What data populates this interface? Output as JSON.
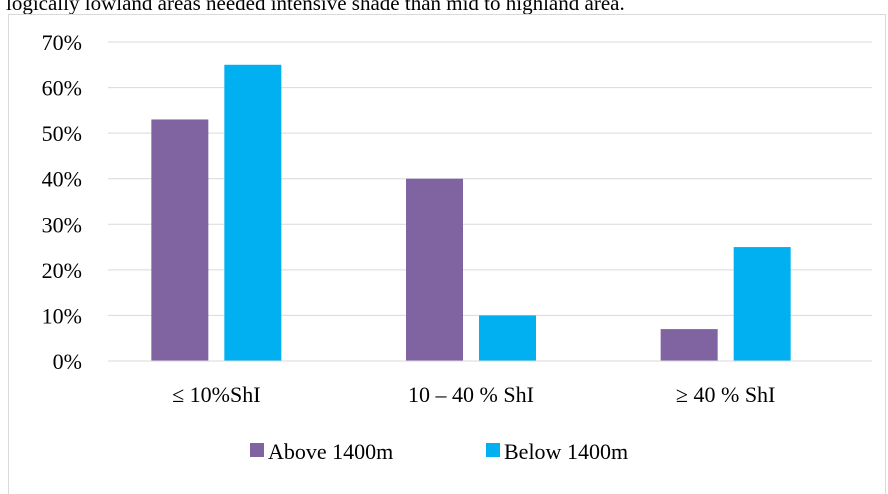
{
  "caption_fragment": "logically lowland areas needed intensive shade than mid to highland area.",
  "colors": {
    "above": "#8064a2",
    "below": "#00b0f0"
  },
  "chart_data": {
    "type": "bar",
    "categories": [
      "≤ 10%ShI",
      "10 – 40 % ShI",
      "≥ 40 % ShI"
    ],
    "series": [
      {
        "name": "Above 1400m",
        "values": [
          53,
          40,
          7
        ]
      },
      {
        "name": "Below 1400m",
        "values": [
          65,
          10,
          25
        ]
      }
    ],
    "ylim": [
      0,
      70
    ],
    "yticks": [
      "0%",
      "10%",
      "20%",
      "30%",
      "40%",
      "50%",
      "60%",
      "70%"
    ],
    "grid": true,
    "legend": "bottom"
  }
}
